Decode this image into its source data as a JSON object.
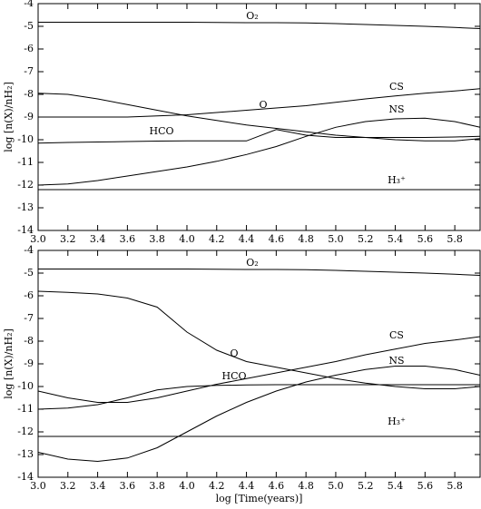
{
  "chart_data": [
    {
      "type": "line",
      "ylabel": "log [n(X)/nH₂]",
      "x": [
        3.0,
        3.2,
        3.4,
        3.6,
        3.8,
        4.0,
        4.2,
        4.4,
        4.6,
        4.8,
        5.0,
        5.2,
        5.4,
        5.6,
        5.8,
        5.97
      ],
      "series": [
        {
          "name": "O₂",
          "color": "#000000",
          "values": [
            -4.82,
            -4.82,
            -4.82,
            -4.82,
            -4.82,
            -4.82,
            -4.83,
            -4.84,
            -4.84,
            -4.85,
            -4.88,
            -4.92,
            -4.96,
            -5.0,
            -5.05,
            -5.1
          ]
        },
        {
          "name": "CS",
          "color": "#000000",
          "values": [
            -9.0,
            -9.0,
            -9.0,
            -9.0,
            -8.95,
            -8.9,
            -8.8,
            -8.7,
            -8.6,
            -8.5,
            -8.35,
            -8.2,
            -8.07,
            -7.95,
            -7.85,
            -7.75
          ]
        },
        {
          "name": "O",
          "color": "#000000",
          "values": [
            -7.95,
            -8.0,
            -8.2,
            -8.45,
            -8.7,
            -8.95,
            -9.15,
            -9.35,
            -9.5,
            -9.65,
            -9.8,
            -9.9,
            -10.0,
            -10.05,
            -10.05,
            -9.95
          ]
        },
        {
          "name": "NS",
          "color": "#000000",
          "values": [
            -12.0,
            -11.95,
            -11.8,
            -11.6,
            -11.4,
            -11.2,
            -10.95,
            -10.65,
            -10.3,
            -9.85,
            -9.45,
            -9.2,
            -9.08,
            -9.05,
            -9.2,
            -9.45
          ]
        },
        {
          "name": "HCO",
          "color": "#000000",
          "values": [
            -10.15,
            -10.12,
            -10.1,
            -10.08,
            -10.06,
            -10.05,
            -10.05,
            -10.05,
            -9.55,
            -9.8,
            -9.9,
            -9.9,
            -9.9,
            -9.9,
            -9.88,
            -9.85
          ]
        },
        {
          "name": "H₃⁺",
          "color": "#000000",
          "values": [
            -12.2,
            -12.2,
            -12.2,
            -12.2,
            -12.2,
            -12.2,
            -12.2,
            -12.2,
            -12.2,
            -12.2,
            -12.2,
            -12.2,
            -12.2,
            -12.2,
            -12.2,
            -12.2
          ]
        }
      ],
      "xlim": [
        3.0,
        5.97
      ],
      "xticks": [
        {
          "value": 3.0,
          "label": "3.0"
        },
        {
          "value": 3.2,
          "label": "3.2"
        },
        {
          "value": 3.4,
          "label": "3.4"
        },
        {
          "value": 3.6,
          "label": "3.6"
        },
        {
          "value": 3.8,
          "label": "3.8"
        },
        {
          "value": 4.0,
          "label": "4.0"
        },
        {
          "value": 4.2,
          "label": "4.2"
        },
        {
          "value": 4.4,
          "label": "4.4"
        },
        {
          "value": 4.6,
          "label": "4.6"
        },
        {
          "value": 4.8,
          "label": "4.8"
        },
        {
          "value": 5.0,
          "label": "5.0"
        },
        {
          "value": 5.2,
          "label": "5.2"
        },
        {
          "value": 5.4,
          "label": "5.4"
        },
        {
          "value": 5.6,
          "label": "5.6"
        },
        {
          "value": 5.8,
          "label": "5.8"
        }
      ],
      "ylim": [
        -14,
        -4
      ],
      "yticks": [
        -14,
        -13,
        -12,
        -11,
        -10,
        -9,
        -8,
        -7,
        -6,
        -5,
        -4
      ]
    },
    {
      "type": "line",
      "ylabel": "log [n(X)/nH₂]",
      "xlabel": "log [Time(years)]",
      "x": [
        3.0,
        3.2,
        3.4,
        3.6,
        3.8,
        4.0,
        4.2,
        4.4,
        4.6,
        4.8,
        5.0,
        5.2,
        5.4,
        5.6,
        5.8,
        5.97
      ],
      "series": [
        {
          "name": "O₂",
          "color": "#000000",
          "values": [
            -4.82,
            -4.82,
            -4.82,
            -4.82,
            -4.82,
            -4.82,
            -4.83,
            -4.84,
            -4.84,
            -4.85,
            -4.88,
            -4.92,
            -4.96,
            -5.0,
            -5.05,
            -5.1
          ]
        },
        {
          "name": "CS",
          "color": "#000000",
          "values": [
            -10.2,
            -10.5,
            -10.7,
            -10.7,
            -10.5,
            -10.2,
            -9.9,
            -9.65,
            -9.4,
            -9.15,
            -8.9,
            -8.6,
            -8.35,
            -8.1,
            -7.95,
            -7.8
          ]
        },
        {
          "name": "O",
          "color": "#000000",
          "values": [
            -5.8,
            -5.85,
            -5.92,
            -6.1,
            -6.5,
            -7.6,
            -8.4,
            -8.9,
            -9.15,
            -9.4,
            -9.65,
            -9.85,
            -10.0,
            -10.1,
            -10.1,
            -10.0
          ]
        },
        {
          "name": "NS",
          "color": "#000000",
          "values": [
            -12.9,
            -13.2,
            -13.3,
            -13.15,
            -12.7,
            -12.0,
            -11.3,
            -10.7,
            -10.2,
            -9.8,
            -9.5,
            -9.25,
            -9.1,
            -9.1,
            -9.25,
            -9.5
          ]
        },
        {
          "name": "HCO",
          "color": "#000000",
          "values": [
            -11.0,
            -10.95,
            -10.8,
            -10.5,
            -10.15,
            -10.0,
            -9.95,
            -9.93,
            -9.92,
            -9.92,
            -9.92,
            -9.92,
            -9.92,
            -9.92,
            -9.92,
            -9.92
          ]
        },
        {
          "name": "H₃⁺",
          "color": "#000000",
          "values": [
            -12.2,
            -12.2,
            -12.2,
            -12.2,
            -12.2,
            -12.2,
            -12.2,
            -12.2,
            -12.2,
            -12.2,
            -12.2,
            -12.2,
            -12.2,
            -12.2,
            -12.2,
            -12.2
          ]
        }
      ],
      "xlim": [
        3.0,
        5.97
      ],
      "xticks": [
        {
          "value": 3.0,
          "label": "3.0"
        },
        {
          "value": 3.2,
          "label": "3.2"
        },
        {
          "value": 3.4,
          "label": "3.4"
        },
        {
          "value": 3.6,
          "label": "3.6"
        },
        {
          "value": 3.8,
          "label": "3.8"
        },
        {
          "value": 4.0,
          "label": "4.0"
        },
        {
          "value": 4.2,
          "label": "4.2"
        },
        {
          "value": 4.4,
          "label": "4.4"
        },
        {
          "value": 4.6,
          "label": "4.6"
        },
        {
          "value": 4.8,
          "label": "4.8"
        },
        {
          "value": 5.0,
          "label": "5.0"
        },
        {
          "value": 5.2,
          "label": "5.2"
        },
        {
          "value": 5.4,
          "label": "5.4"
        },
        {
          "value": 5.6,
          "label": "5.6"
        },
        {
          "value": 5.8,
          "label": "5.8"
        }
      ],
      "ylim": [
        -14,
        -4
      ],
      "yticks": [
        -14,
        -13,
        -12,
        -11,
        -10,
        -9,
        -8,
        -7,
        -6,
        -5,
        -4
      ]
    }
  ]
}
